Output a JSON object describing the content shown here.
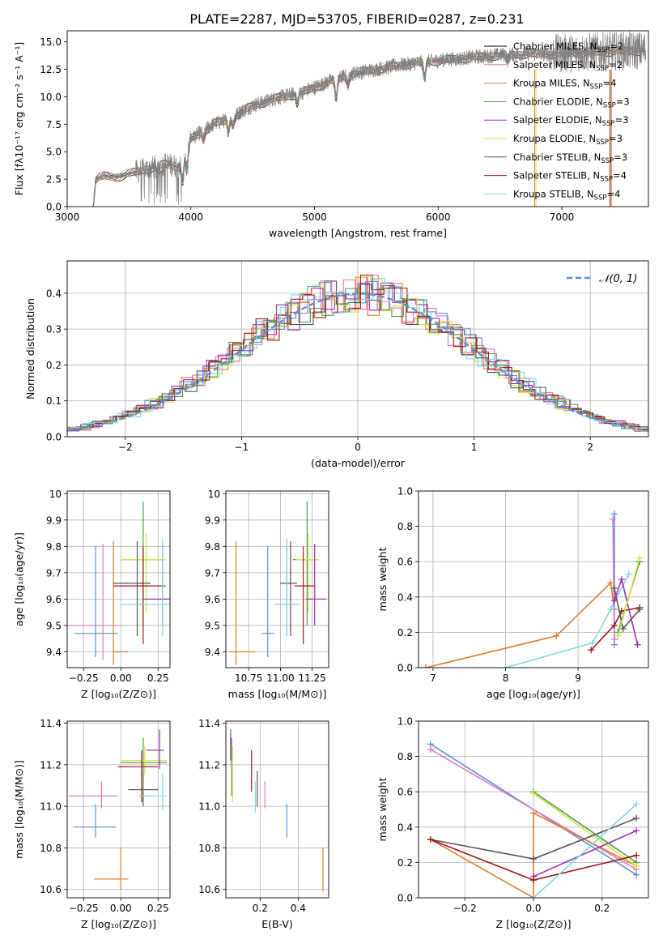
{
  "title": "PLATE=2287, MJD=53705, FIBERID=0287, z=0.231",
  "models": [
    {
      "name": "Chabrier MILES",
      "nssp": "2",
      "color": "#000000"
    },
    {
      "name": "Salpeter MILES",
      "nssp": "2",
      "color": "#e377c2"
    },
    {
      "name": "Kroupa MILES",
      "nssp": "4",
      "color": "#e07b28"
    },
    {
      "name": "Chabrier ELODIE",
      "nssp": "3",
      "color": "#4c9a4c"
    },
    {
      "name": "Salpeter ELODIE",
      "nssp": "3",
      "color": "#9b30b0"
    },
    {
      "name": "Kroupa ELODIE",
      "nssp": "3",
      "color": "#d6e04a"
    },
    {
      "name": "Chabrier STELIB",
      "nssp": "3",
      "color": "#555555"
    },
    {
      "name": "Salpeter STELIB",
      "nssp": "4",
      "color": "#a01818"
    },
    {
      "name": "Kroupa STELIB",
      "nssp": "4",
      "color": "#80d8e0"
    }
  ],
  "chart_data": [
    {
      "id": "spectrum",
      "type": "line",
      "xlabel": "wavelength [Angstrom, rest frame]",
      "ylabel": "Flux [fλ10⁻¹⁷ erg cm⁻² s⁻¹ A⁻¹]",
      "xlim": [
        3000,
        7700
      ],
      "ylim": [
        0,
        16
      ],
      "xticks": [
        3000,
        4000,
        5000,
        6000,
        7000
      ],
      "yticks": [
        0.0,
        2.5,
        5.0,
        7.5,
        10.0,
        12.5,
        15.0
      ],
      "ytick_labels": [
        "0.0",
        "2.5",
        "5.0",
        "7.5",
        "10.0",
        "12.5",
        "15.0"
      ],
      "legend_position": "top-right",
      "data_color": "#808080",
      "continuum": {
        "x": [
          3210,
          3230,
          3300,
          3400,
          3500,
          3600,
          3700,
          3800,
          3900,
          3950,
          4000,
          4100,
          4200,
          4300,
          4400,
          4500,
          4700,
          4900,
          5100,
          5300,
          5500,
          5700,
          5900,
          6100,
          6300,
          6500,
          6700,
          6900,
          7100,
          7300,
          7600
        ],
        "y": [
          0.0,
          2.5,
          2.8,
          2.7,
          3.0,
          3.3,
          3.6,
          3.9,
          3.7,
          4.7,
          6.2,
          6.9,
          7.6,
          7.9,
          8.6,
          9.2,
          9.9,
          10.4,
          11.3,
          12.1,
          12.5,
          12.9,
          13.2,
          13.4,
          13.6,
          13.8,
          13.9,
          13.9,
          14.0,
          14.1,
          14.2
        ]
      },
      "dips": [
        {
          "x": 3730,
          "depth": 0.7
        },
        {
          "x": 3933,
          "depth": 2.1
        },
        {
          "x": 3968,
          "depth": 2.0
        },
        {
          "x": 4102,
          "depth": 0.8
        },
        {
          "x": 4304,
          "depth": 1.0
        },
        {
          "x": 4341,
          "depth": 0.7
        },
        {
          "x": 4861,
          "depth": 0.9
        },
        {
          "x": 5175,
          "depth": 1.8
        },
        {
          "x": 5270,
          "depth": 0.8
        },
        {
          "x": 5890,
          "depth": 1.5
        },
        {
          "x": 6563,
          "depth": 0.5
        }
      ]
    },
    {
      "id": "residuals",
      "type": "histogram",
      "xlabel": "(data-model)/error",
      "ylabel": "Normed distribution",
      "xlim": [
        -2.5,
        2.5
      ],
      "ylim": [
        0,
        0.49
      ],
      "xticks": [
        -2,
        -1,
        0,
        1,
        2
      ],
      "xtick_labels": [
        "−2",
        "−1",
        "0",
        "1",
        "2"
      ],
      "yticks": [
        0.0,
        0.1,
        0.2,
        0.3,
        0.4
      ],
      "ytick_labels": [
        "0.0",
        "0.1",
        "0.2",
        "0.3",
        "0.4"
      ],
      "bin_width": 0.1,
      "bin_start": -2.5,
      "normal_curve": {
        "label": "𝒩(0, 1)",
        "color": "#5b8fd6",
        "mean": 0,
        "sigma": 1
      },
      "legend_position": "top-right",
      "grid": true
    },
    {
      "id": "age-vs-z",
      "type": "scatter",
      "xlabel": "Z [log₁₀(Z/Z⊙)]",
      "ylabel": "age  [log₁₀(age/yr)]",
      "xlim": [
        -0.36,
        0.33
      ],
      "ylim": [
        9.34,
        10.01
      ],
      "xticks": [
        -0.25,
        0.0,
        0.25
      ],
      "xtick_labels": [
        "−0.25",
        "0.00",
        "0.25"
      ],
      "yticks": [
        9.4,
        9.5,
        9.6,
        9.7,
        9.8,
        9.9,
        10.0
      ],
      "points": [
        {
          "model": 2,
          "x": -0.05,
          "y": 9.4,
          "xlo": -0.05,
          "xhi": 0.05,
          "ylo": 9.35,
          "yhi": 9.82
        },
        {
          "model": 1,
          "x": -0.12,
          "y": 9.5,
          "xlo": -0.36,
          "xhi": 0.0,
          "ylo": 9.37,
          "yhi": 9.81
        },
        {
          "model": 0,
          "x": -0.17,
          "y": 9.47,
          "xlo": -0.31,
          "xhi": -0.02,
          "ylo": 9.38,
          "yhi": 9.8
        },
        {
          "model": 3,
          "x": 0.15,
          "y": 9.75,
          "xlo": 0.0,
          "xhi": 0.3,
          "ylo": 9.5,
          "yhi": 9.97
        },
        {
          "model": 5,
          "x": 0.17,
          "y": 9.75,
          "xlo": 0.0,
          "xhi": 0.3,
          "ylo": 9.55,
          "yhi": 9.85
        },
        {
          "model": 6,
          "x": 0.11,
          "y": 9.66,
          "xlo": -0.05,
          "xhi": 0.2,
          "ylo": 9.46,
          "yhi": 9.82
        },
        {
          "model": 7,
          "x": 0.15,
          "y": 9.65,
          "xlo": -0.05,
          "xhi": 0.3,
          "ylo": 9.43,
          "yhi": 9.8
        },
        {
          "model": 4,
          "x": 0.28,
          "y": 9.6,
          "xlo": 0.15,
          "xhi": 0.33,
          "ylo": 9.5,
          "yhi": 9.81
        },
        {
          "model": 8,
          "x": 0.28,
          "y": 9.58,
          "xlo": 0.0,
          "xhi": 0.33,
          "ylo": 9.46,
          "yhi": 9.83
        }
      ]
    },
    {
      "id": "age-vs-mass",
      "type": "scatter",
      "xlabel": "mass [log₁₀(M/M⊙)]",
      "ylabel": "",
      "xlim": [
        10.57,
        11.38
      ],
      "ylim": [
        9.34,
        10.01
      ],
      "xticks": [
        10.75,
        11.0,
        11.25
      ],
      "xtick_labels": [
        "10.75",
        "11.00",
        "11.25"
      ],
      "yticks": [
        9.4,
        9.5,
        9.6,
        9.7,
        9.8,
        9.9,
        10.0
      ],
      "points": [
        {
          "model": 2,
          "x": 10.65,
          "y": 9.4,
          "xlo": 10.6,
          "xhi": 10.8,
          "ylo": 9.35,
          "yhi": 9.82
        },
        {
          "model": 0,
          "x": 10.9,
          "y": 9.47,
          "xlo": 10.85,
          "xhi": 10.95,
          "ylo": 9.38,
          "yhi": 9.8
        },
        {
          "model": 1,
          "x": 11.05,
          "y": 9.58,
          "xlo": 10.97,
          "xhi": 11.1,
          "ylo": 9.46,
          "yhi": 9.8
        },
        {
          "model": 6,
          "x": 11.08,
          "y": 9.66,
          "xlo": 11.0,
          "xhi": 11.13,
          "ylo": 9.46,
          "yhi": 9.82
        },
        {
          "model": 3,
          "x": 11.21,
          "y": 9.75,
          "xlo": 11.1,
          "xhi": 11.3,
          "ylo": 9.5,
          "yhi": 9.97
        },
        {
          "model": 5,
          "x": 11.22,
          "y": 9.75,
          "xlo": 11.12,
          "xhi": 11.3,
          "ylo": 9.55,
          "yhi": 9.85
        },
        {
          "model": 7,
          "x": 11.18,
          "y": 9.65,
          "xlo": 11.11,
          "xhi": 11.27,
          "ylo": 9.43,
          "yhi": 9.8
        },
        {
          "model": 4,
          "x": 11.27,
          "y": 9.6,
          "xlo": 11.2,
          "xhi": 11.36,
          "ylo": 9.5,
          "yhi": 9.81
        },
        {
          "model": 8,
          "x": 11.05,
          "y": 9.58,
          "xlo": 10.95,
          "xhi": 11.15,
          "ylo": 9.46,
          "yhi": 9.83
        }
      ]
    },
    {
      "id": "weight-vs-age",
      "type": "line",
      "xlabel": "age  [log₁₀(age/yr)]",
      "ylabel": "mass weight",
      "xlim": [
        6.8,
        9.97
      ],
      "ylim": [
        0,
        1.0
      ],
      "xticks": [
        7,
        8,
        9
      ],
      "yticks": [
        0.0,
        0.2,
        0.4,
        0.6,
        0.8,
        1.0
      ],
      "ytick_labels": [
        "0.0",
        "0.2",
        "0.4",
        "0.6",
        "0.8",
        "1.0"
      ],
      "series": [
        {
          "model": 2,
          "x": [
            6.9,
            8.7,
            9.45,
            9.5
          ],
          "y": [
            0.0,
            0.18,
            0.48,
            0.33
          ]
        },
        {
          "model": 8,
          "x": [
            8.0,
            9.2,
            9.45,
            9.7
          ],
          "y": [
            0.0,
            0.14,
            0.33,
            0.53
          ]
        },
        {
          "model": 0,
          "x": [
            9.5,
            9.5
          ],
          "y": [
            0.87,
            0.13
          ]
        },
        {
          "model": 1,
          "x": [
            9.48,
            9.5
          ],
          "y": [
            0.84,
            0.16
          ]
        },
        {
          "model": 7,
          "x": [
            9.18,
            9.5,
            9.6,
            9.85
          ],
          "y": [
            0.1,
            0.24,
            0.32,
            0.34
          ]
        },
        {
          "model": 6,
          "x": [
            9.5,
            9.62,
            9.85
          ],
          "y": [
            0.45,
            0.22,
            0.33
          ]
        },
        {
          "model": 4,
          "x": [
            9.5,
            9.6,
            9.82
          ],
          "y": [
            0.38,
            0.5,
            0.13
          ]
        },
        {
          "model": 3,
          "x": [
            9.55,
            9.85
          ],
          "y": [
            0.2,
            0.6
          ]
        },
        {
          "model": 5,
          "x": [
            9.55,
            9.85
          ],
          "y": [
            0.18,
            0.62
          ]
        }
      ]
    },
    {
      "id": "mass-vs-z",
      "type": "scatter",
      "xlabel": "Z [log₁₀(Z/Z⊙)]",
      "ylabel": "mass [log₁₀(M/M⊙)]",
      "xlim": [
        -0.36,
        0.33
      ],
      "ylim": [
        10.56,
        11.41
      ],
      "xticks": [
        -0.25,
        0.0,
        0.25
      ],
      "xtick_labels": [
        "−0.25",
        "0.00",
        "0.25"
      ],
      "yticks": [
        10.6,
        10.8,
        11.0,
        11.2,
        11.4
      ],
      "ytick_labels": [
        "10.6",
        "10.8",
        "11.0",
        "11.2",
        "11.4"
      ],
      "points": [
        {
          "model": 2,
          "x": 0.0,
          "y": 10.65,
          "xlo": -0.18,
          "xhi": 0.05,
          "ylo": 10.6,
          "yhi": 10.8
        },
        {
          "model": 0,
          "x": -0.17,
          "y": 10.9,
          "xlo": -0.32,
          "xhi": -0.03,
          "ylo": 10.85,
          "yhi": 11.01
        },
        {
          "model": 1,
          "x": -0.13,
          "y": 11.05,
          "xlo": -0.35,
          "xhi": -0.02,
          "ylo": 10.99,
          "yhi": 11.12
        },
        {
          "model": 6,
          "x": 0.15,
          "y": 11.08,
          "xlo": 0.05,
          "xhi": 0.25,
          "ylo": 11.0,
          "yhi": 11.17
        },
        {
          "model": 3,
          "x": 0.15,
          "y": 11.21,
          "xlo": 0.0,
          "xhi": 0.31,
          "ylo": 11.05,
          "yhi": 11.33
        },
        {
          "model": 5,
          "x": 0.16,
          "y": 11.22,
          "xlo": 0.0,
          "xhi": 0.31,
          "ylo": 11.15,
          "yhi": 11.29
        },
        {
          "model": 7,
          "x": 0.14,
          "y": 11.19,
          "xlo": -0.02,
          "xhi": 0.25,
          "ylo": 11.02,
          "yhi": 11.27
        },
        {
          "model": 4,
          "x": 0.26,
          "y": 11.27,
          "xlo": 0.17,
          "xhi": 0.29,
          "ylo": 11.18,
          "yhi": 11.37
        },
        {
          "model": 8,
          "x": 0.28,
          "y": 11.05,
          "xlo": 0.12,
          "xhi": 0.31,
          "ylo": 10.98,
          "yhi": 11.16
        }
      ]
    },
    {
      "id": "mass-vs-ebv",
      "type": "scatter",
      "xlabel": "E(B-V)",
      "ylabel": "",
      "xlim": [
        0.02,
        0.56
      ],
      "ylim": [
        10.56,
        11.41
      ],
      "xticks": [
        0.2,
        0.4
      ],
      "xtick_labels": [
        "0.2",
        "0.4"
      ],
      "yticks": [
        10.6,
        10.8,
        11.0,
        11.2,
        11.4
      ],
      "ytick_labels": [
        "10.6",
        "10.8",
        "11.0",
        "11.2",
        "11.4"
      ],
      "points": [
        {
          "model": 2,
          "x": 0.53,
          "y": 10.65,
          "ylo": 10.59,
          "yhi": 10.8
        },
        {
          "model": 0,
          "x": 0.34,
          "y": 10.9,
          "ylo": 10.85,
          "yhi": 11.01
        },
        {
          "model": 1,
          "x": 0.225,
          "y": 11.05,
          "ylo": 10.99,
          "yhi": 11.12
        },
        {
          "model": 6,
          "x": 0.185,
          "y": 11.08,
          "ylo": 11.0,
          "yhi": 11.17
        },
        {
          "model": 7,
          "x": 0.155,
          "y": 11.19,
          "ylo": 11.07,
          "yhi": 11.27
        },
        {
          "model": 3,
          "x": 0.05,
          "y": 11.21,
          "ylo": 11.05,
          "yhi": 11.33
        },
        {
          "model": 5,
          "x": 0.055,
          "y": 11.22,
          "ylo": 11.02,
          "yhi": 11.29
        },
        {
          "model": 4,
          "x": 0.045,
          "y": 11.27,
          "ylo": 11.22,
          "yhi": 11.37
        },
        {
          "model": 8,
          "x": 0.175,
          "y": 11.05,
          "ylo": 10.97,
          "yhi": 11.12
        }
      ]
    },
    {
      "id": "weight-vs-z",
      "type": "line",
      "xlabel": "Z [log₁₀(Z/Z⊙)]",
      "ylabel": "mass weight",
      "xlim": [
        -0.335,
        0.335
      ],
      "ylim": [
        0,
        1.0
      ],
      "xticks": [
        -0.2,
        0.0,
        0.2
      ],
      "xtick_labels": [
        "−0.2",
        "0.0",
        "0.2"
      ],
      "yticks": [
        0.0,
        0.2,
        0.4,
        0.6,
        0.8,
        1.0
      ],
      "ytick_labels": [
        "0.0",
        "0.2",
        "0.4",
        "0.6",
        "0.8",
        "1.0"
      ],
      "series": [
        {
          "model": 0,
          "x": [
            -0.3,
            0.3
          ],
          "y": [
            0.87,
            0.13
          ]
        },
        {
          "model": 1,
          "x": [
            -0.3,
            0.3
          ],
          "y": [
            0.84,
            0.16
          ]
        },
        {
          "model": 2,
          "x": [
            -0.3,
            0.0,
            0.0,
            0.3
          ],
          "y": [
            0.33,
            0.0,
            0.48,
            0.18
          ]
        },
        {
          "model": 3,
          "x": [
            0.0,
            0.3
          ],
          "y": [
            0.6,
            0.2
          ]
        },
        {
          "model": 5,
          "x": [
            0.0,
            0.3
          ],
          "y": [
            0.59,
            0.18
          ]
        },
        {
          "model": 4,
          "x": [
            0.0,
            0.3
          ],
          "y": [
            0.12,
            0.38
          ]
        },
        {
          "model": 6,
          "x": [
            -0.3,
            0.0,
            0.3
          ],
          "y": [
            0.33,
            0.22,
            0.45
          ]
        },
        {
          "model": 7,
          "x": [
            -0.3,
            0.0,
            0.3
          ],
          "y": [
            0.33,
            0.1,
            0.24
          ]
        },
        {
          "model": 8,
          "x": [
            0.0,
            0.3
          ],
          "y": [
            0.0,
            0.53
          ]
        }
      ]
    }
  ]
}
